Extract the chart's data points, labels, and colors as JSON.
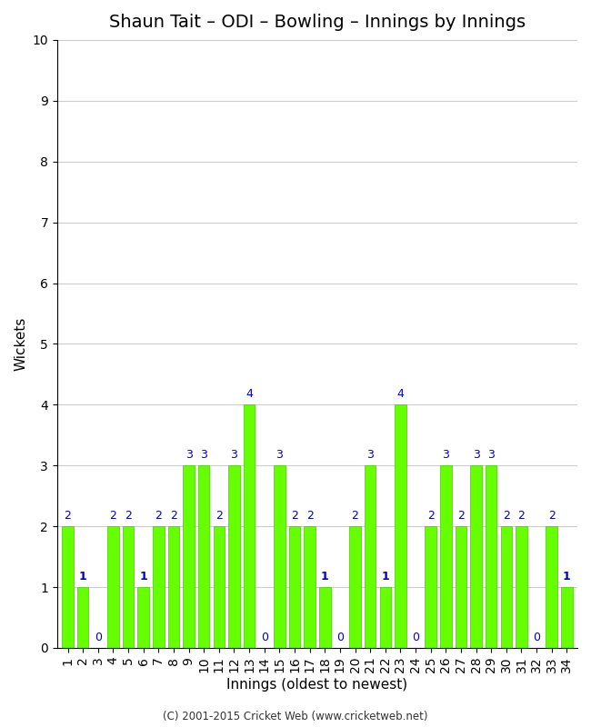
{
  "title": "Shaun Tait – ODI – Bowling – Innings by Innings",
  "xlabel": "Innings (oldest to newest)",
  "ylabel": "Wickets",
  "footer": "(C) 2001-2015 Cricket Web (www.cricketweb.net)",
  "innings": [
    1,
    2,
    3,
    4,
    5,
    6,
    7,
    8,
    9,
    10,
    11,
    12,
    13,
    14,
    15,
    16,
    17,
    18,
    19,
    20,
    21,
    22,
    23,
    24,
    25,
    26,
    27,
    28,
    29,
    30,
    31,
    32,
    33,
    34
  ],
  "wickets": [
    2,
    1,
    0,
    2,
    2,
    1,
    2,
    2,
    3,
    3,
    2,
    3,
    4,
    0,
    3,
    2,
    2,
    1,
    0,
    2,
    3,
    1,
    4,
    0,
    2,
    3,
    2,
    3,
    3,
    2,
    2,
    0,
    2,
    1
  ],
  "bar_color": "#66ff00",
  "bar_edge_color": "#44cc00",
  "label_color": "#0000cc",
  "ylim": [
    0,
    10
  ],
  "yticks": [
    0,
    1,
    2,
    3,
    4,
    5,
    6,
    7,
    8,
    9,
    10
  ],
  "background_color": "#ffffff",
  "title_fontsize": 14,
  "label_fontsize": 11,
  "tick_fontsize": 10,
  "annotation_fontsize": 9
}
